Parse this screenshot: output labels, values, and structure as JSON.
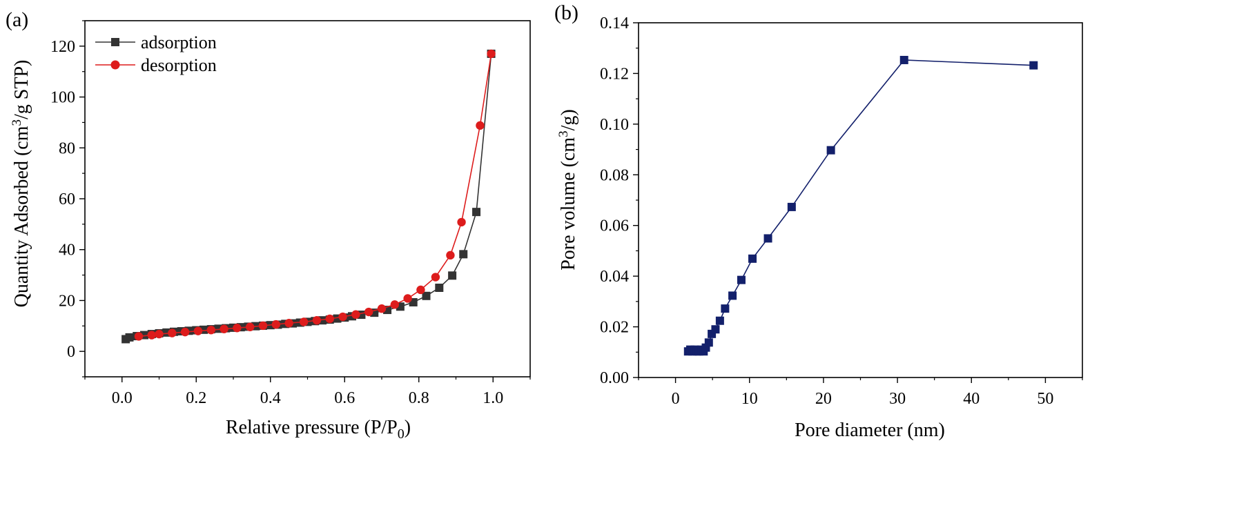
{
  "chart_data": [
    {
      "panel_label": "(a)",
      "type": "line",
      "xlabel": "Relative pressure (P/P",
      "xlabel_sub": "0",
      "xlabel_end": ")",
      "ylabel": "Quantity Adsorbed (cm",
      "ylabel_sup": "3",
      "ylabel_end": "/g STP)",
      "xlim": [
        -0.1,
        1.1
      ],
      "ylim": [
        -10,
        130
      ],
      "xticks": [
        "0.0",
        "0.2",
        "0.4",
        "0.6",
        "0.8",
        "1.0"
      ],
      "yticks": [
        "0",
        "20",
        "40",
        "60",
        "80",
        "100",
        "120"
      ],
      "legend_position": "top-left",
      "series": [
        {
          "name": "adsorption",
          "color": "#333333",
          "marker": "square",
          "x": [
            0.01,
            0.02,
            0.04,
            0.06,
            0.08,
            0.1,
            0.12,
            0.14,
            0.16,
            0.18,
            0.2,
            0.22,
            0.24,
            0.26,
            0.28,
            0.3,
            0.32,
            0.34,
            0.36,
            0.38,
            0.4,
            0.42,
            0.44,
            0.46,
            0.48,
            0.5,
            0.52,
            0.54,
            0.56,
            0.58,
            0.6,
            0.62,
            0.645,
            0.68,
            0.715,
            0.75,
            0.785,
            0.82,
            0.855,
            0.89,
            0.92,
            0.955,
            0.995
          ],
          "y": [
            4.8,
            5.5,
            6.0,
            6.4,
            6.8,
            7.1,
            7.4,
            7.7,
            7.9,
            8.1,
            8.3,
            8.5,
            8.7,
            8.9,
            9.1,
            9.3,
            9.5,
            9.7,
            9.9,
            10.1,
            10.3,
            10.5,
            10.8,
            11.0,
            11.3,
            11.6,
            11.9,
            12.2,
            12.5,
            12.9,
            13.3,
            13.8,
            14.4,
            15.2,
            16.3,
            17.6,
            19.3,
            21.8,
            25.0,
            29.8,
            38.2,
            54.8,
            117.0
          ]
        },
        {
          "name": "desorption",
          "color": "#dd1c1c",
          "marker": "circle",
          "x": [
            0.995,
            0.965,
            0.915,
            0.885,
            0.845,
            0.805,
            0.77,
            0.735,
            0.7,
            0.665,
            0.63,
            0.595,
            0.56,
            0.525,
            0.49,
            0.45,
            0.415,
            0.38,
            0.345,
            0.31,
            0.275,
            0.24,
            0.205,
            0.17,
            0.135,
            0.1,
            0.08,
            0.045
          ],
          "y": [
            117.0,
            88.8,
            50.8,
            37.8,
            29.2,
            24.2,
            20.8,
            18.4,
            16.8,
            15.5,
            14.5,
            13.6,
            12.8,
            12.2,
            11.6,
            11.1,
            10.6,
            10.1,
            9.6,
            9.2,
            8.8,
            8.4,
            8.0,
            7.6,
            7.2,
            6.8,
            6.4,
            5.9
          ]
        }
      ]
    },
    {
      "panel_label": "(b)",
      "type": "line",
      "xlabel": "Pore diameter (nm)",
      "ylabel": "Pore volume (cm",
      "ylabel_sup": "3",
      "ylabel_end": "/g)",
      "xlim": [
        -5,
        55
      ],
      "ylim": [
        0,
        0.14
      ],
      "xticks": [
        "0",
        "10",
        "20",
        "30",
        "40",
        "50"
      ],
      "yticks": [
        "0.00",
        "0.02",
        "0.04",
        "0.06",
        "0.08",
        "0.10",
        "0.12",
        "0.14"
      ],
      "series": [
        {
          "name": "pore volume",
          "color": "#13206b",
          "marker": "square",
          "x": [
            1.7,
            2.0,
            2.3,
            2.6,
            2.9,
            3.2,
            3.5,
            3.8,
            4.1,
            4.5,
            4.9,
            5.4,
            6.0,
            6.7,
            7.7,
            8.9,
            10.4,
            12.5,
            15.7,
            21.0,
            30.9,
            48.4
          ],
          "y": [
            0.0103,
            0.011,
            0.0103,
            0.011,
            0.0103,
            0.0103,
            0.011,
            0.0103,
            0.0118,
            0.0138,
            0.0172,
            0.019,
            0.0224,
            0.0272,
            0.0323,
            0.0385,
            0.0469,
            0.0549,
            0.0673,
            0.0897,
            0.1253,
            0.1232
          ]
        }
      ]
    }
  ]
}
